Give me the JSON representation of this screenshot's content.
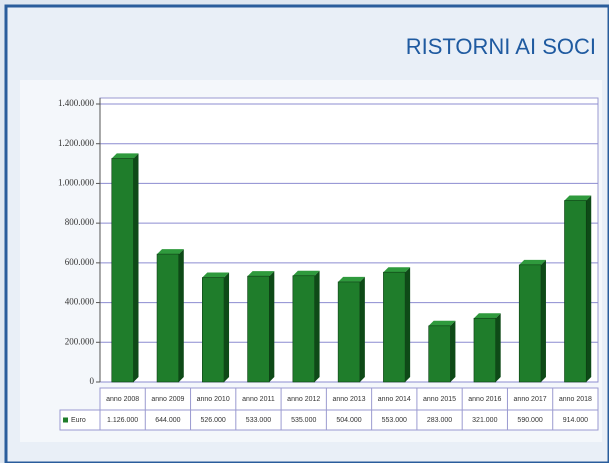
{
  "chart_data": {
    "type": "bar",
    "title": "RISTORNI AI SOCI",
    "categories": [
      "anno 2008",
      "anno 2009",
      "anno 2010",
      "anno 2011",
      "anno 2012",
      "anno 2013",
      "anno 2014",
      "anno 2015",
      "anno 2016",
      "anno 2017",
      "anno 2018"
    ],
    "series": [
      {
        "name": "Euro",
        "color": "#1f7d2b",
        "values": [
          1126000,
          644000,
          526000,
          533000,
          535000,
          504000,
          553000,
          283000,
          321000,
          590000,
          914000
        ],
        "value_labels": [
          "1.126.000",
          "644.000",
          "526.000",
          "533.000",
          "535.000",
          "504.000",
          "553.000",
          "283.000",
          "321.000",
          "590.000",
          "914.000"
        ]
      }
    ],
    "ylim": [
      0,
      1400000
    ],
    "yticks": [
      0,
      {
        "value": 200000,
        "label": "200.000"
      },
      {
        "value": 400000,
        "label": "400.000"
      },
      {
        "value": 600000,
        "label": "600.000"
      },
      {
        "value": 800000,
        "label": "800.000"
      },
      {
        "value": 1000000,
        "label": "1.000.000"
      },
      {
        "value": 1200000,
        "label": "1.200.000"
      },
      {
        "value": 1400000,
        "label": "1.400.000"
      }
    ],
    "grid": true
  }
}
